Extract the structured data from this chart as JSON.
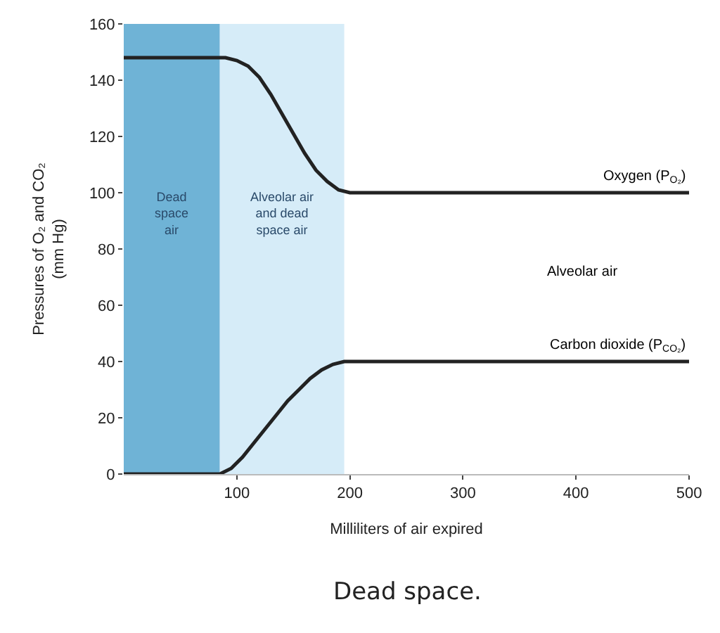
{
  "chart_data": {
    "type": "line",
    "xlabel": "Milliliters of air expired",
    "ylabel": "Pressures of O₂ and CO₂\n(mm Hg)",
    "xlim": [
      0,
      500
    ],
    "xticks": [
      100,
      200,
      300,
      400,
      500
    ],
    "ylim": [
      0,
      160
    ],
    "yticks": [
      0,
      20,
      40,
      60,
      80,
      100,
      120,
      140,
      160
    ],
    "grid": false,
    "legend": false,
    "marker": "none",
    "line_style": "solid",
    "series": [
      {
        "name": "Oxygen (P$_{O₂}$)",
        "color": "#222222",
        "x": [
          0,
          90,
          100,
          110,
          120,
          130,
          140,
          150,
          160,
          170,
          180,
          190,
          200,
          500
        ],
        "values": [
          148,
          148,
          147,
          145,
          141,
          135,
          128,
          121,
          114,
          108,
          104,
          101,
          100,
          100
        ]
      },
      {
        "name": "Carbon dioxide (P$_{CO₂}$)",
        "color": "#222222",
        "x": [
          0,
          85,
          95,
          105,
          115,
          125,
          135,
          145,
          155,
          165,
          175,
          185,
          195,
          500
        ],
        "values": [
          0,
          0,
          2,
          6,
          11,
          16,
          21,
          26,
          30,
          34,
          37,
          39,
          40,
          40
        ]
      }
    ],
    "bands": [
      {
        "axis": "x",
        "from": 0,
        "to": 85,
        "label": "Dead\nspace\nair",
        "color": "#6fb3d6"
      },
      {
        "axis": "x",
        "from": 85,
        "to": 195,
        "label": "Alveolar air\nand dead\nspace air",
        "color": "#d6ecf8"
      }
    ],
    "annotations": [
      "Alveolar air",
      "Dead space."
    ]
  }
}
